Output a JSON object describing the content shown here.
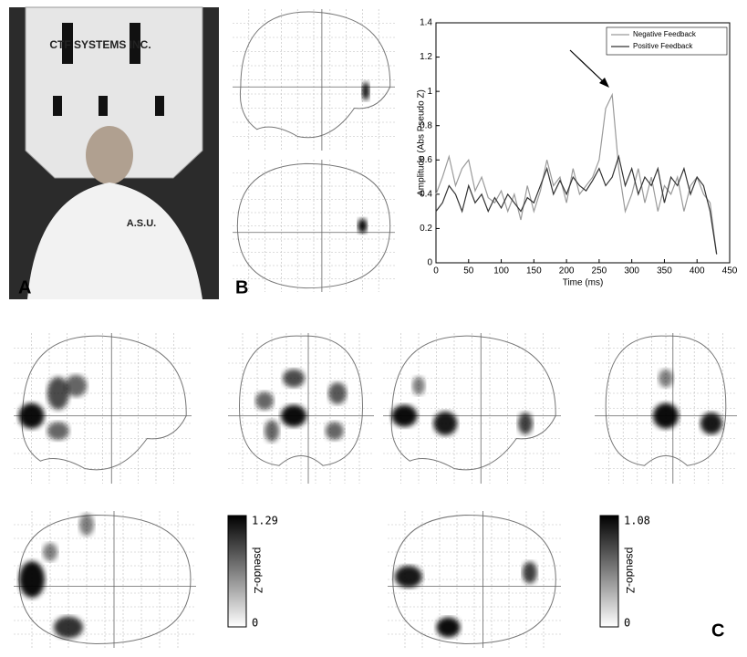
{
  "panels": {
    "a": "A",
    "b": "B",
    "c": "C"
  },
  "photo_text": {
    "helmet": "CTF SYSTEMS INC.",
    "shirt": "A.S.U."
  },
  "colorbars": [
    {
      "max": 1.29,
      "min": 0,
      "label": "pseudo-Z"
    },
    {
      "max": 1.08,
      "min": 0,
      "label": "pseudo-Z"
    }
  ],
  "chart_data": {
    "type": "line",
    "x_label": "Time (ms)",
    "y_label": "Amplitude (Abs Pseudo Z)",
    "x": [
      0,
      10,
      20,
      30,
      40,
      50,
      60,
      70,
      80,
      90,
      100,
      110,
      120,
      130,
      140,
      150,
      160,
      170,
      180,
      190,
      200,
      210,
      220,
      230,
      240,
      250,
      260,
      270,
      280,
      290,
      300,
      310,
      320,
      330,
      340,
      350,
      360,
      370,
      380,
      390,
      400,
      410,
      420,
      430
    ],
    "series": [
      {
        "name": "Negative Feedback",
        "color": "#9a9a9a",
        "values": [
          0.4,
          0.5,
          0.62,
          0.45,
          0.55,
          0.6,
          0.42,
          0.5,
          0.38,
          0.35,
          0.42,
          0.3,
          0.4,
          0.25,
          0.45,
          0.3,
          0.42,
          0.6,
          0.45,
          0.5,
          0.35,
          0.55,
          0.4,
          0.45,
          0.5,
          0.6,
          0.9,
          0.98,
          0.55,
          0.3,
          0.4,
          0.55,
          0.35,
          0.5,
          0.3,
          0.45,
          0.4,
          0.5,
          0.3,
          0.45,
          0.5,
          0.4,
          0.35,
          0.05
        ]
      },
      {
        "name": "Positive Feedback",
        "color": "#333333",
        "values": [
          0.3,
          0.35,
          0.45,
          0.4,
          0.3,
          0.45,
          0.35,
          0.4,
          0.3,
          0.38,
          0.32,
          0.4,
          0.35,
          0.3,
          0.38,
          0.35,
          0.45,
          0.55,
          0.4,
          0.48,
          0.4,
          0.5,
          0.45,
          0.42,
          0.48,
          0.55,
          0.45,
          0.5,
          0.62,
          0.45,
          0.55,
          0.4,
          0.5,
          0.45,
          0.55,
          0.35,
          0.5,
          0.45,
          0.55,
          0.4,
          0.5,
          0.45,
          0.3,
          0.05
        ]
      }
    ],
    "xlim": [
      0,
      450
    ],
    "xticks": [
      0,
      50,
      100,
      150,
      200,
      250,
      300,
      350,
      400,
      450
    ],
    "ylim": [
      0,
      1.4
    ],
    "yticks": [
      0,
      0.2,
      0.4,
      0.6,
      0.8,
      1,
      1.2,
      1.4
    ]
  }
}
